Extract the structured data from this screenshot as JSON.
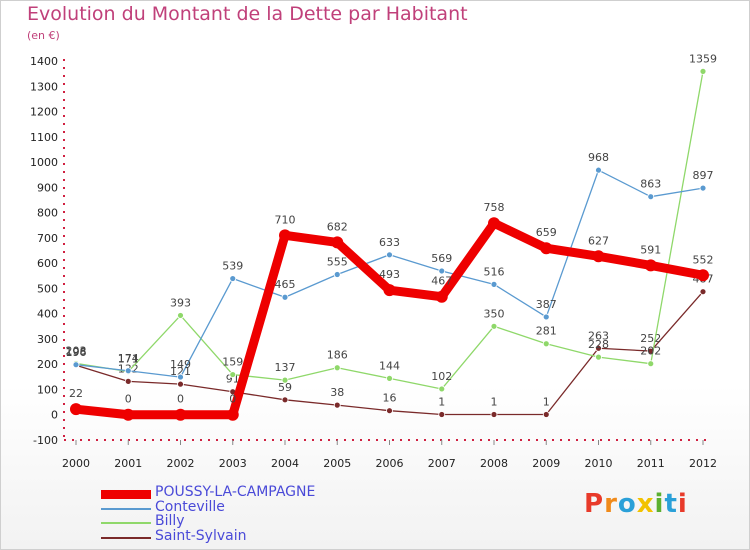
{
  "title": "Evolution du Montant de la Dette par Habitant",
  "unit": "(en €)",
  "logo": "Proxiti",
  "chart_data": {
    "type": "line",
    "title": "Evolution du Montant de la Dette par Habitant",
    "ylabel": "(en €)",
    "xlabel": "",
    "categories": [
      "2000",
      "2001",
      "2002",
      "2003",
      "2004",
      "2005",
      "2006",
      "2007",
      "2008",
      "2009",
      "2010",
      "2011",
      "2012"
    ],
    "ylim": [
      -100,
      1400
    ],
    "yticks": [
      -100,
      0,
      100,
      200,
      300,
      400,
      500,
      600,
      700,
      800,
      900,
      1000,
      1100,
      1200,
      1300,
      1400
    ],
    "grid": false,
    "legend": "bottom-left",
    "series": [
      {
        "name": "POUSSY-LA-CAMPAGNE",
        "color": "#ee0000",
        "values": [
          22,
          0,
          0,
          0,
          710,
          682,
          493,
          467,
          758,
          659,
          627,
          591,
          552
        ]
      },
      {
        "name": "Conteville",
        "color": "#5a9ad0",
        "values": [
          198,
          174,
          149,
          539,
          465,
          555,
          633,
          569,
          516,
          387,
          968,
          863,
          897
        ]
      },
      {
        "name": "Billy",
        "color": "#8fd86a",
        "values": [
          203,
          171,
          393,
          159,
          137,
          186,
          144,
          102,
          350,
          281,
          228,
          202,
          1359
        ]
      },
      {
        "name": "Saint-Sylvain",
        "color": "#7a2a2a",
        "values": [
          196,
          132,
          121,
          91,
          59,
          38,
          16,
          1,
          1,
          1,
          263,
          252,
          487
        ]
      }
    ]
  }
}
